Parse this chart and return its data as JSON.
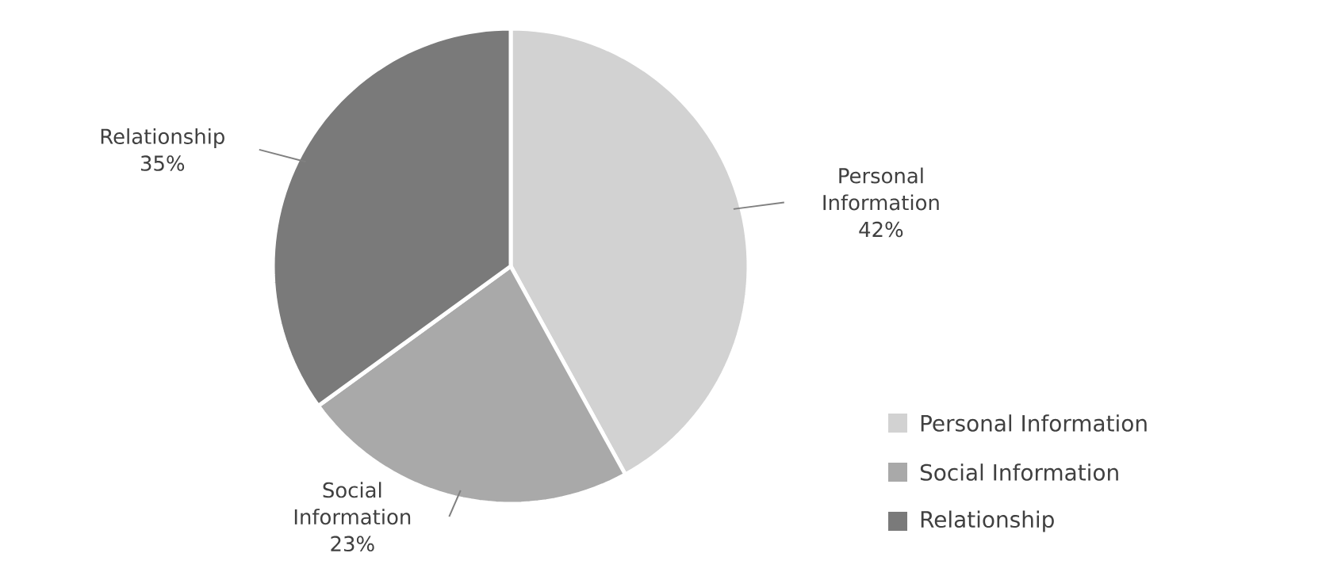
{
  "chart_data": {
    "type": "pie",
    "categories": [
      "Personal Information",
      "Social Information",
      "Relationship"
    ],
    "values": [
      42,
      23,
      35
    ],
    "value_labels": [
      "42%",
      "23%",
      "35%"
    ],
    "colors": [
      "#d2d2d2",
      "#a9a9a9",
      "#7a7a7a"
    ],
    "legend": "bottom right"
  }
}
